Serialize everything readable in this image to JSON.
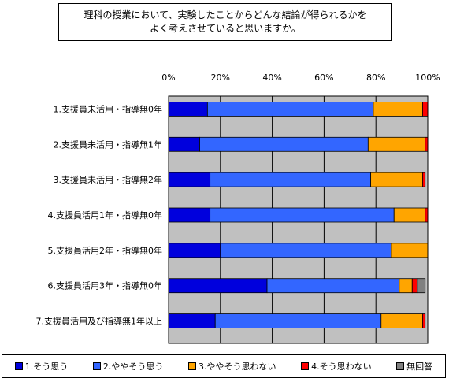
{
  "title_lines": [
    "理科の授業において、実験したことからどんな結論が得られるかを",
    "よく考えさせていると思いますか。"
  ],
  "colors": {
    "series": [
      "#0000dd",
      "#3366ff",
      "#ffa500",
      "#ff0000",
      "#808080"
    ],
    "plot_background": "#c0c0c0",
    "gridline": "#000000"
  },
  "chart_data": {
    "type": "bar",
    "orientation": "horizontal",
    "stacked": true,
    "percent": true,
    "xlim": [
      0,
      100
    ],
    "x_ticks": [
      "0%",
      "20%",
      "40%",
      "60%",
      "80%",
      "100%"
    ],
    "x_tick_position": "top",
    "grid": true,
    "legend_position": "bottom",
    "categories": [
      "1.支援員未活用・指導無0年",
      "2.支援員未活用・指導無1年",
      "3.支援員未活用・指導無2年",
      "4.支援員活用1年・指導無0年",
      "5.支援員活用2年・指導無0年",
      "6.支援員活用3年・指導無0年",
      "7.支援員活用及び指導無1年以上"
    ],
    "series": [
      {
        "name": "1.そう思う",
        "values": [
          15,
          12,
          16,
          16,
          20,
          38,
          18
        ]
      },
      {
        "name": "2.ややそう思う",
        "values": [
          64,
          65,
          62,
          71,
          66,
          51,
          64
        ]
      },
      {
        "name": "3.ややそう思わない",
        "values": [
          19,
          22,
          20,
          12,
          14,
          5,
          16
        ]
      },
      {
        "name": "4.そう思わない",
        "values": [
          2,
          1,
          1,
          1,
          0,
          2,
          1
        ]
      },
      {
        "name": "無回答",
        "values": [
          0,
          0,
          0,
          0,
          0,
          3,
          0
        ]
      }
    ]
  }
}
